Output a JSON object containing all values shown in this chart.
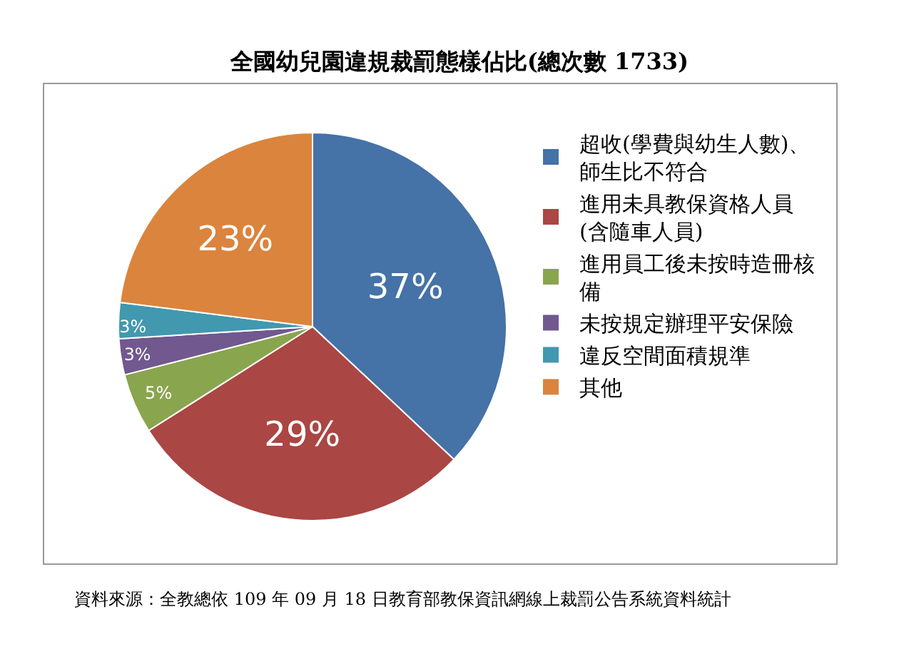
{
  "chart_data": {
    "type": "pie",
    "title": "全國幼兒園違規裁罰態樣佔比(總次數 1733)",
    "categories": [
      "超收(學費與幼生人數)、師生比不符合",
      "進用未具教保資格人員(含隨車人員)",
      "進用員工後未按時造冊核備",
      "未按規定辦理平安保險",
      "違反空間面積規準",
      "其他"
    ],
    "values": [
      37,
      29,
      5,
      3,
      3,
      23
    ],
    "colors": [
      "#4572a7",
      "#aa4643",
      "#89a54e",
      "#71588f",
      "#4198af",
      "#db843d"
    ],
    "value_labels": [
      "37%",
      "29%",
      "5%",
      "3%",
      "3%",
      "23%"
    ],
    "legend": "right",
    "annotations": [
      "資料來源：全教總依 109 年 09 月 18 日教育部教保資訊網線上裁罰公告系統資料統計"
    ]
  }
}
